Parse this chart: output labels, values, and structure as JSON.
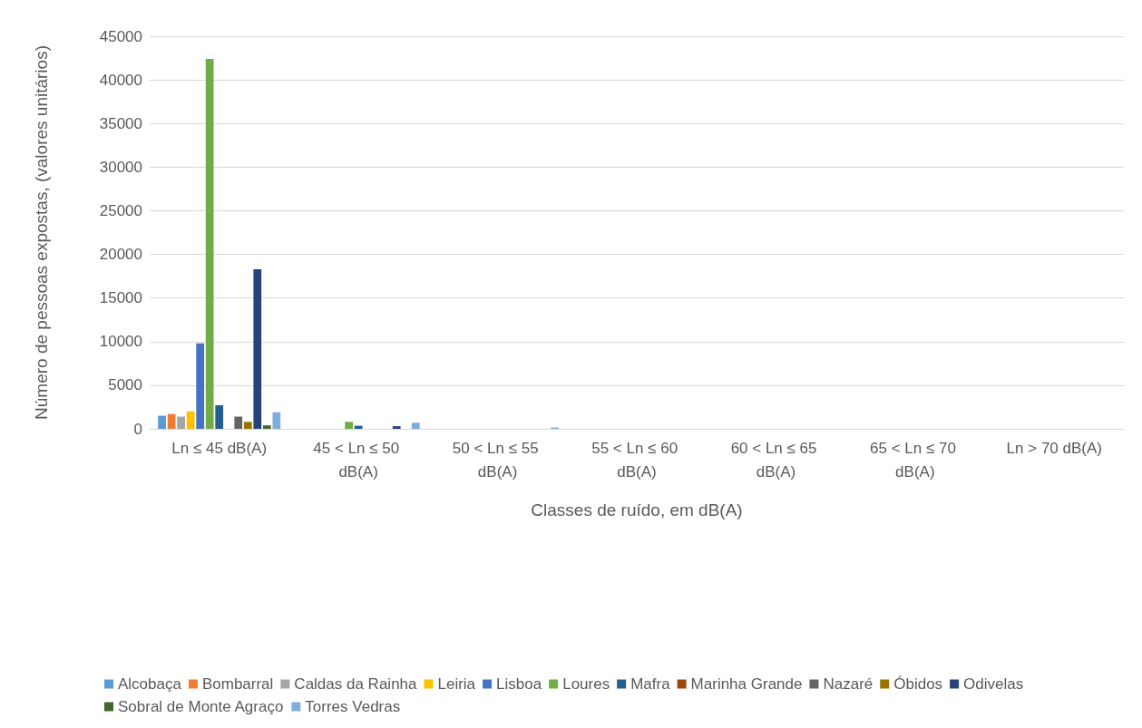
{
  "chart_data": {
    "type": "bar",
    "xlabel": "Classes de ruído, em dB(A)",
    "ylabel": "Número de pessoas expostas, (valores unitários)",
    "categories": [
      "Ln ≤ 45 dB(A)",
      "45 < Ln ≤ 50 dB(A)",
      "50 < Ln ≤ 55 dB(A)",
      "55 < Ln ≤ 60 dB(A)",
      "60 < Ln ≤ 65 dB(A)",
      "65 < Ln ≤ 70 dB(A)",
      "Ln > 70 dB(A)"
    ],
    "series": [
      {
        "name": "Alcobaça",
        "color": "#5b9bd5",
        "values": [
          1500,
          0,
          0,
          0,
          0,
          0,
          0
        ]
      },
      {
        "name": "Bombarral",
        "color": "#ed7d31",
        "values": [
          1700,
          0,
          0,
          0,
          0,
          0,
          0
        ]
      },
      {
        "name": "Caldas da Rainha",
        "color": "#a5a5a5",
        "values": [
          1400,
          0,
          0,
          0,
          0,
          0,
          0
        ]
      },
      {
        "name": "Leiria",
        "color": "#ffc000",
        "values": [
          2000,
          0,
          0,
          0,
          0,
          0,
          0
        ]
      },
      {
        "name": "Lisboa",
        "color": "#4472c4",
        "values": [
          9800,
          0,
          0,
          0,
          0,
          0,
          0
        ]
      },
      {
        "name": "Loures",
        "color": "#70ad47",
        "values": [
          42400,
          800,
          0,
          0,
          0,
          0,
          0
        ]
      },
      {
        "name": "Mafra",
        "color": "#255e91",
        "values": [
          2700,
          350,
          0,
          0,
          0,
          0,
          0
        ]
      },
      {
        "name": "Marinha Grande",
        "color": "#9e480e",
        "values": [
          0,
          0,
          0,
          0,
          0,
          0,
          0
        ]
      },
      {
        "name": "Nazaré",
        "color": "#636363",
        "values": [
          1400,
          0,
          0,
          0,
          0,
          0,
          0
        ]
      },
      {
        "name": "Óbidos",
        "color": "#997300",
        "values": [
          800,
          0,
          0,
          0,
          0,
          0,
          0
        ]
      },
      {
        "name": "Odivelas",
        "color": "#264478",
        "values": [
          18300,
          300,
          0,
          0,
          0,
          0,
          0
        ]
      },
      {
        "name": "Sobral de Monte Agraço",
        "color": "#43682b",
        "values": [
          400,
          0,
          0,
          0,
          0,
          0,
          0
        ]
      },
      {
        "name": "Torres Vedras",
        "color": "#7cafdd",
        "values": [
          1900,
          700,
          150,
          0,
          0,
          0,
          0
        ]
      }
    ],
    "ylim": [
      0,
      45000
    ],
    "yticks": [
      0,
      5000,
      10000,
      15000,
      20000,
      25000,
      30000,
      35000,
      40000,
      45000
    ],
    "grid": "y",
    "legend": "bottom"
  }
}
